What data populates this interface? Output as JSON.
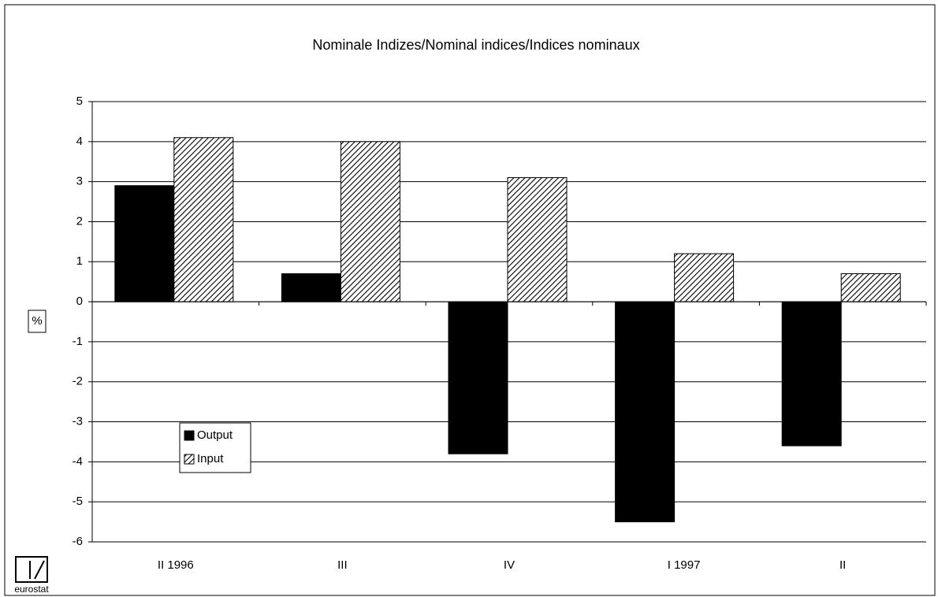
{
  "chart_data": {
    "type": "bar",
    "title": "Nominale Indizes/Nominal indices/Indices nominaux",
    "y_label": "%",
    "categories": [
      "II 1996",
      "III",
      "IV",
      "I 1997",
      "II"
    ],
    "series": [
      {
        "name": "Output",
        "color": "#000000",
        "values": [
          2.9,
          0.7,
          -3.8,
          -5.5,
          -3.6
        ]
      },
      {
        "name": "Input",
        "color": "#ffffff",
        "pattern": "hatch",
        "values": [
          4.1,
          4.0,
          3.1,
          1.2,
          0.7
        ]
      }
    ],
    "ylim": [
      -6,
      5
    ],
    "yticks": [
      -6,
      -5,
      -4,
      -3,
      -2,
      -1,
      0,
      1,
      2,
      3,
      4,
      5
    ],
    "grid": true,
    "logo_text": "eurostat"
  }
}
